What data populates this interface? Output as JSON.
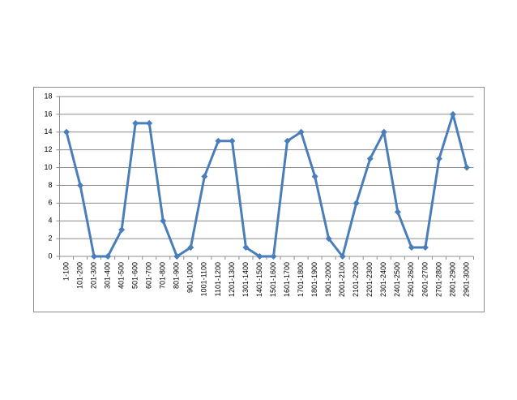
{
  "chart_data": {
    "type": "line",
    "categories": [
      "1-100",
      "101-200",
      "201-300",
      "301-400",
      "401-500",
      "501-600",
      "601-700",
      "701-800",
      "801-900",
      "901-1000",
      "1001-1100",
      "1101-1200",
      "1201-1300",
      "1301-1400",
      "1401-1500",
      "1501-1600",
      "1601-1700",
      "1701-1800",
      "1801-1900",
      "1901-2000",
      "2001-2100",
      "2101-2200",
      "2201-2300",
      "2301-2400",
      "2401-2500",
      "2501-2600",
      "2601-2700",
      "2701-2800",
      "2801-2900",
      "2901-3000"
    ],
    "values": [
      14,
      8,
      0,
      0,
      3,
      15,
      15,
      4,
      0,
      1,
      9,
      13,
      13,
      1,
      0,
      0,
      13,
      14,
      9,
      2,
      0,
      6,
      11,
      14,
      5,
      1,
      1,
      11,
      16,
      10
    ],
    "color": "#4a7ebb",
    "ylim": [
      0,
      18
    ],
    "yticks": [
      0,
      2,
      4,
      6,
      8,
      10,
      12,
      14,
      16,
      18
    ],
    "grid": true
  }
}
